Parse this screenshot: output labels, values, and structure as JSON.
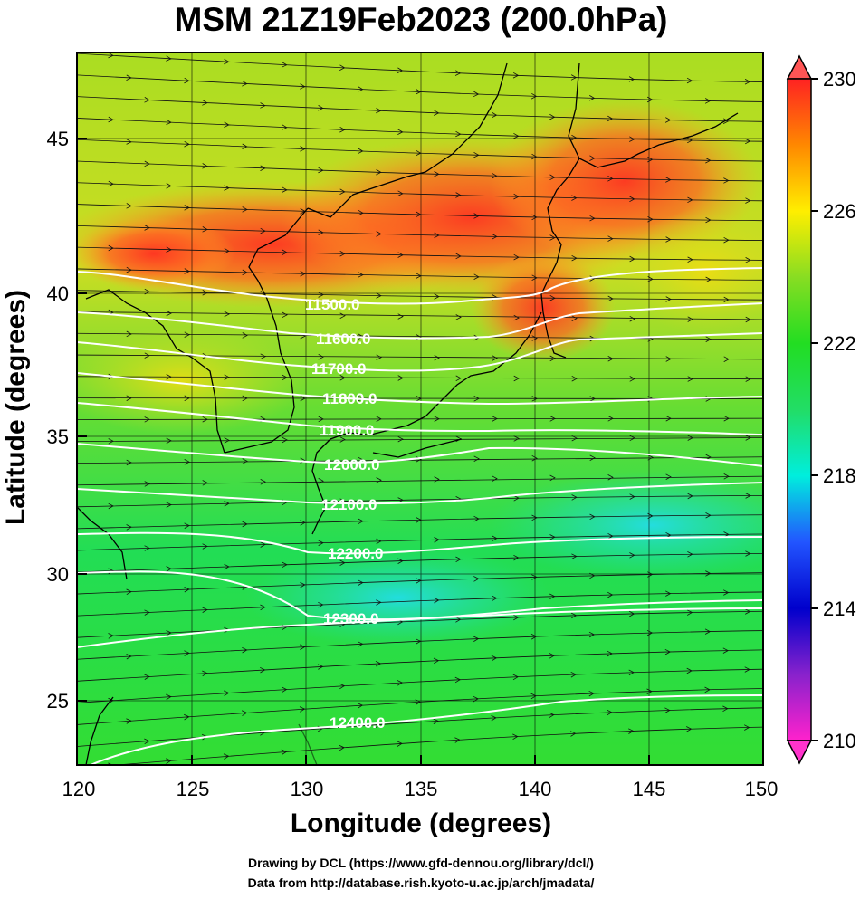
{
  "title": "MSM 21Z19Feb2023 (200.0hPa)",
  "axes": {
    "xlabel": "Longitude (degrees)",
    "ylabel": "Latitude  (degrees)",
    "x_range": [
      120,
      150
    ],
    "y_range": [
      22.4,
      47.6
    ],
    "x_ticks": [
      "120",
      "125",
      "130",
      "135",
      "140",
      "145",
      "150"
    ],
    "y_ticks": [
      "25",
      "30",
      "35",
      "40",
      "45"
    ]
  },
  "colorbar": {
    "min": 210,
    "max": 230,
    "tick_labels": [
      "210",
      "214",
      "218",
      "222",
      "226",
      "230"
    ],
    "colors": {
      "v210": "#ff22cc",
      "v212": "#8822cc",
      "v214": "#0000cc",
      "v216": "#2255ff",
      "v218": "#00eedd",
      "v220": "#22dd66",
      "v222": "#22dd22",
      "v224": "#88dd22",
      "v226": "#ffee00",
      "v228": "#ff8800",
      "v230": "#ff2222"
    }
  },
  "contours": {
    "labels": [
      "11500.0",
      "11600.0",
      "11700.0",
      "11800.0",
      "11900.0",
      "12000.0",
      "12100.0",
      "12200.0",
      "12300.0",
      "12400.0"
    ]
  },
  "wind": {
    "direction": "west-to-east",
    "style": "black streamlines with arrow heads"
  },
  "credits": {
    "line1": "Drawing by DCL (https://www.gfd-dennou.org/library/dcl/)",
    "line2": "Data from http://database.rish.kyoto-u.ac.jp/arch/jmadata/"
  }
}
